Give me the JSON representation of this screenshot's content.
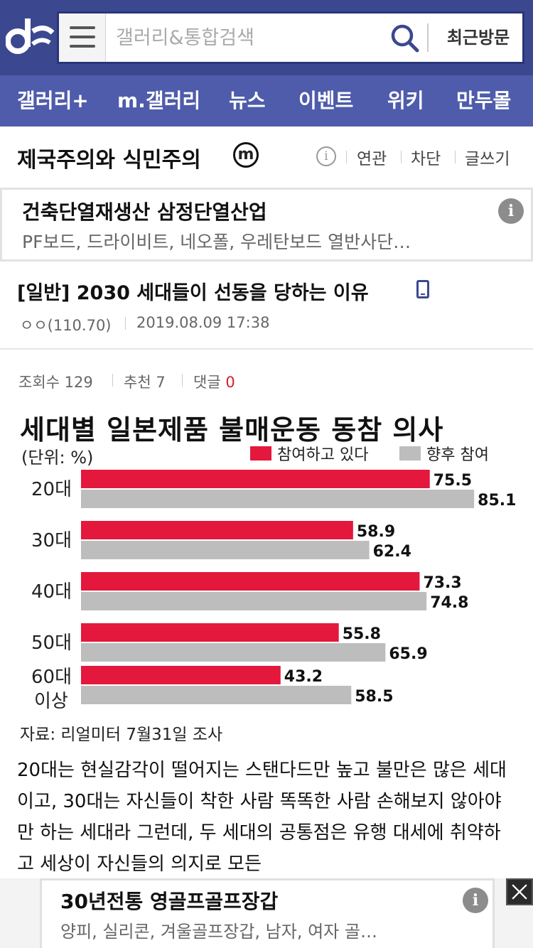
{
  "header": {
    "search_placeholder": "갤러리&통합검색",
    "recent_label": "최근방문",
    "brand_color": "#3b4890"
  },
  "nav": {
    "items": [
      "갤러리+",
      "m.갤러리",
      "뉴스",
      "이벤트",
      "위키",
      "만두몰"
    ]
  },
  "gallery": {
    "title": "제국주의와 식민주의",
    "badge": "m",
    "info_icon_text": "i",
    "links": [
      "연관",
      "차단",
      "글쓰기"
    ]
  },
  "ad_top": {
    "title": "건축단열재생산 삼정단열산업",
    "desc": "PF보드, 드라이비트, 네오폴, 우레탄보드 열반사단…",
    "info_text": "i"
  },
  "post": {
    "title": "[일반] 2030 세대들이 선동을 당하는 이유",
    "author": "ㅇㅇ(110.70)",
    "date": "2019.08.09 17:38",
    "views_label": "조회수 129",
    "likes_label": "추천 7",
    "comments_label": "댓글",
    "comments_count": "0"
  },
  "chart_data": {
    "type": "bar",
    "title": "세대별 일본제품 불매운동 동참 의사",
    "unit": "(단위: %)",
    "categories": [
      "20대",
      "30대",
      "40대",
      "50대",
      "60대"
    ],
    "category_line2": [
      "",
      "",
      "",
      "",
      "이상"
    ],
    "series": [
      {
        "name": "참여하고 있다",
        "color": "#e3183c",
        "values": [
          75.5,
          58.9,
          73.3,
          55.8,
          43.2
        ],
        "labels": [
          "75.5",
          "58.9",
          "73.3",
          "55.8",
          "43.2"
        ]
      },
      {
        "name": "향후 참여",
        "color": "#bdbdbd",
        "values": [
          85.1,
          62.4,
          74.8,
          65.9,
          58.5
        ],
        "labels": [
          "85.1",
          "62.4",
          "74.8",
          "65.9",
          "58.5"
        ]
      }
    ],
    "xlim": [
      0,
      100
    ],
    "grid": false,
    "legend": "top-right",
    "source": "자료: 리얼미터 7월31일 조사"
  },
  "body_text": "20대는 현실감각이 떨어지는 스탠다드만 높고 불만은 많은 세대이고, 30대는 자신들이 착한 사람 똑똑한 사람 손해보지 않아야만 하는 세대라 그런데, 두 세대의 공통점은 유행 대세에 취약하고 세상이 자신들의 의지로 모든",
  "ad_bottom": {
    "title": "30년전통 영골프골프장갑",
    "desc": "양피, 실리콘, 겨울골프장갑, 남자, 여자 골…",
    "info_text": "i",
    "close_icon": "close-icon"
  }
}
